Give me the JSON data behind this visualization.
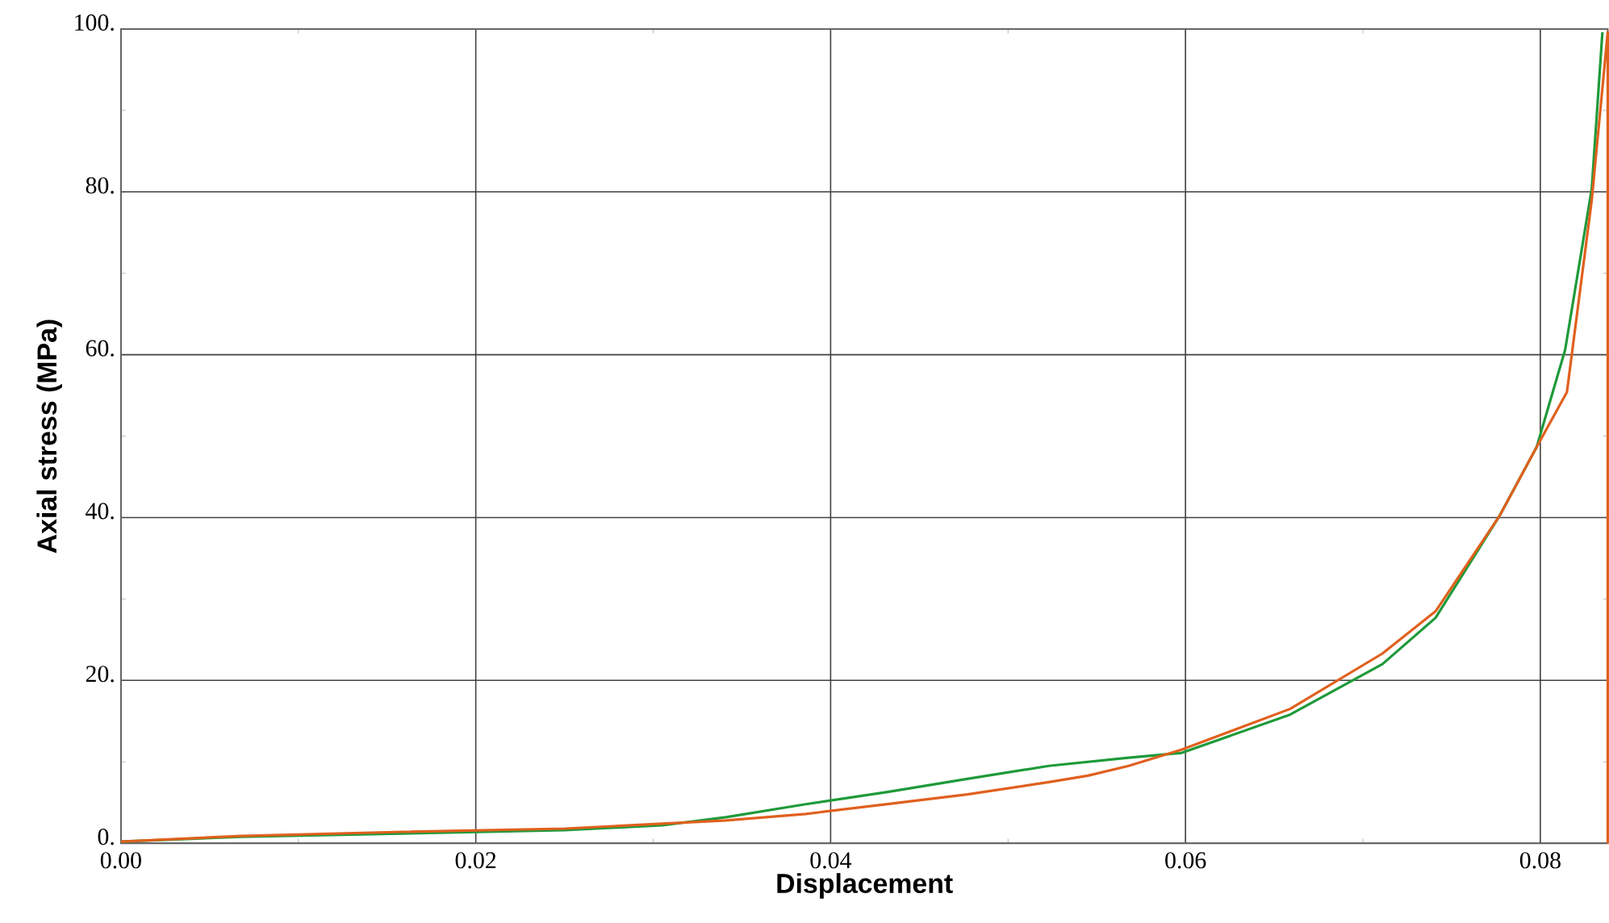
{
  "chart_data": {
    "type": "line",
    "xlabel": "Displacement",
    "ylabel": "Axial stress (MPa)",
    "xlim": [
      0,
      0.0838
    ],
    "ylim": [
      0,
      100
    ],
    "xticks": [
      {
        "value": 0,
        "label": "0.00"
      },
      {
        "value": 0.02,
        "label": "0.02"
      },
      {
        "value": 0.04,
        "label": "0.04"
      },
      {
        "value": 0.06,
        "label": "0.06"
      },
      {
        "value": 0.08,
        "label": "0.08"
      }
    ],
    "yticks": [
      {
        "value": 0,
        "label": "0."
      },
      {
        "value": 20,
        "label": "20."
      },
      {
        "value": 40,
        "label": "40."
      },
      {
        "value": 60,
        "label": "60."
      },
      {
        "value": 80,
        "label": "80."
      },
      {
        "value": 100,
        "label": "100."
      }
    ],
    "grid": true,
    "marker": "none",
    "line_style": "solid",
    "series": [
      {
        "color": "#1e9a3a",
        "x": [
          0,
          0.0068,
          0.0159,
          0.025,
          0.0305,
          0.0341,
          0.0386,
          0.0432,
          0.0477,
          0.0523,
          0.0568,
          0.0598,
          0.0659,
          0.0711,
          0.0741,
          0.0777,
          0.0798,
          0.0814,
          0.0829,
          0.0835
        ],
        "values": [
          0.2,
          0.8,
          1.2,
          1.6,
          2.2,
          3.2,
          4.8,
          6.3,
          7.9,
          9.5,
          10.5,
          11.1,
          15.8,
          22.0,
          27.7,
          40.2,
          48.7,
          60.6,
          80.4,
          99.6
        ]
      },
      {
        "color": "#e0601e",
        "x": [
          0,
          0.0068,
          0.0159,
          0.025,
          0.0305,
          0.0341,
          0.0386,
          0.0432,
          0.0477,
          0.0523,
          0.0545,
          0.0568,
          0.0598,
          0.0659,
          0.0711,
          0.0741,
          0.0777,
          0.0798,
          0.0815,
          0.0829,
          0.0838,
          0.0838
        ],
        "values": [
          0.2,
          0.9,
          1.4,
          1.8,
          2.4,
          2.8,
          3.6,
          4.8,
          6.0,
          7.5,
          8.3,
          9.5,
          11.5,
          16.5,
          23.3,
          28.5,
          40.2,
          48.7,
          55.4,
          79,
          99.6,
          0
        ]
      }
    ]
  }
}
